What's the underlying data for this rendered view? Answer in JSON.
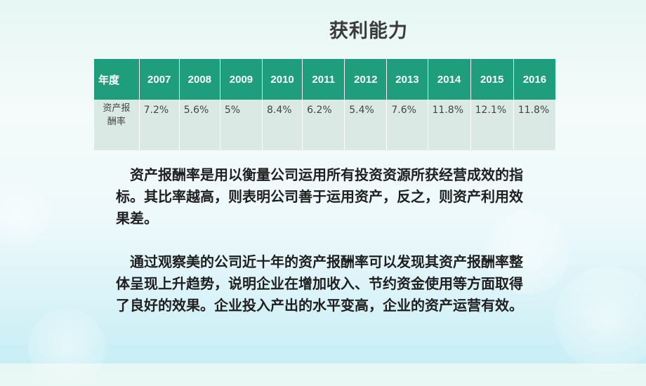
{
  "title": "获利能力",
  "table": {
    "header_label": "年度",
    "years": [
      "2007",
      "2008",
      "2009",
      "2010",
      "2011",
      "2012",
      "2013",
      "2014",
      "2015",
      "2016"
    ],
    "row_label": "资产报酬率",
    "values": [
      "7.2%",
      "5.6%",
      "5%",
      "8.4%",
      "6.2%",
      "5.4%",
      "7.6%",
      "11.8%",
      "12.1%",
      "11.8%"
    ]
  },
  "paragraphs": [
    "资产报酬率是用以衡量公司运用所有投资资源所获经营成效的指标。其比率越高，则表明公司善于运用资产，反之，则资产利用效果差。",
    "通过观察美的公司近十年的资产报酬率可以发现其资产报酬率整体呈现上升趋势，说明企业在增加收入、节约资金使用等方面取得了良好的效果。企业投入产出的水平变高，企业的资产运营有效。"
  ],
  "colors": {
    "header_bg": "#1e9e7d",
    "row_bg": "#dbe9e5",
    "background": "#e6f7f4"
  }
}
